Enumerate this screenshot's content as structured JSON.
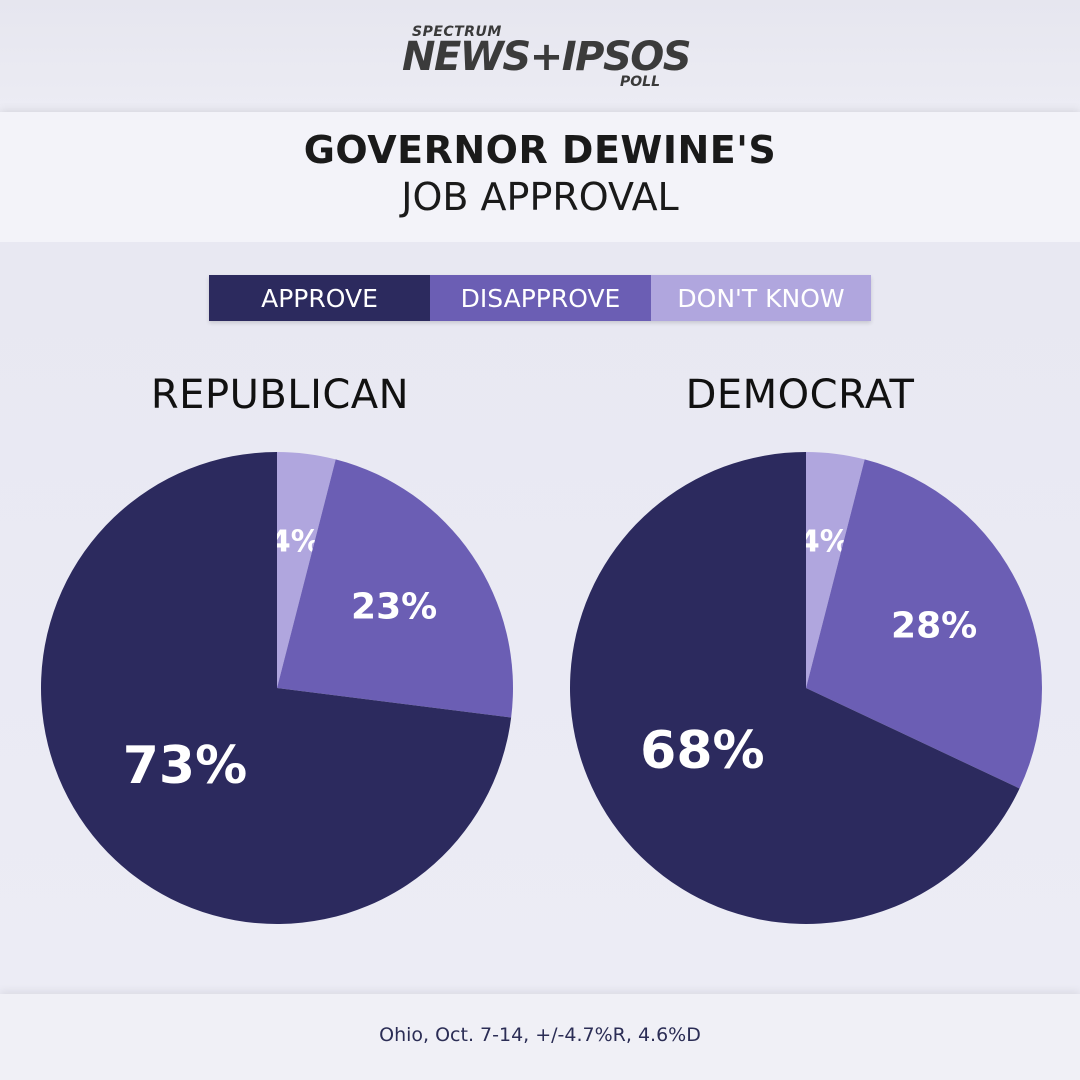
{
  "header": {
    "logo_small": "SPECTRUM",
    "logo_main": "NEWS+IPSOS",
    "logo_sub": "POLL"
  },
  "title": {
    "line1": "GOVERNOR DEWINE'S",
    "line2": "JOB APPROVAL"
  },
  "legend": [
    {
      "label": "APPROVE",
      "color": "#2c2a5e"
    },
    {
      "label": "DISAPPROVE",
      "color": "#6b5eb4"
    },
    {
      "label": "DON'T KNOW",
      "color": "#b0a6de"
    }
  ],
  "chart_data": [
    {
      "type": "pie",
      "title": "REPUBLICAN",
      "categories": [
        "DON'T KNOW",
        "DISAPPROVE",
        "APPROVE"
      ],
      "values": [
        4,
        23,
        73
      ],
      "labels": [
        "4%",
        "23%",
        "73%"
      ],
      "colors": [
        "#b0a6de",
        "#6b5eb4",
        "#2c2a5e"
      ]
    },
    {
      "type": "pie",
      "title": "DEMOCRAT",
      "categories": [
        "DON'T KNOW",
        "DISAPPROVE",
        "APPROVE"
      ],
      "values": [
        4,
        28,
        68
      ],
      "labels": [
        "4%",
        "28%",
        "68%"
      ],
      "colors": [
        "#b0a6de",
        "#6b5eb4",
        "#2c2a5e"
      ]
    }
  ],
  "footer": {
    "note": "Ohio, Oct. 7-14, +/-4.7%R, 4.6%D"
  }
}
